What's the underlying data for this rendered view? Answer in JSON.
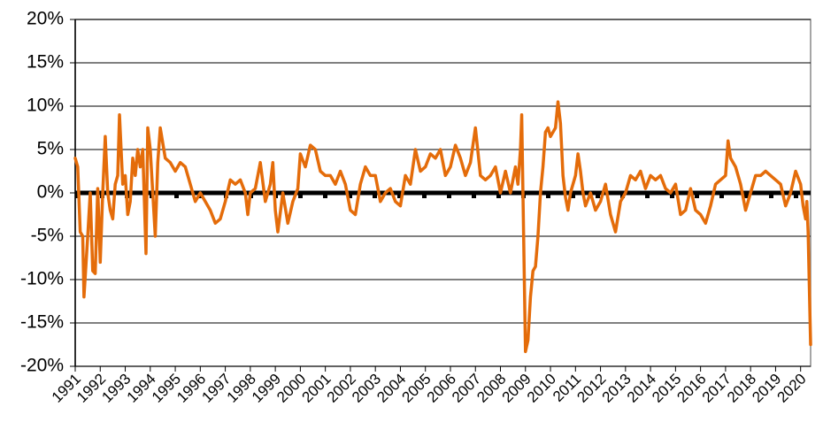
{
  "chart_data": {
    "type": "line",
    "x": [
      1991.0,
      1991.1,
      1991.2,
      1991.3,
      1991.35,
      1991.5,
      1991.6,
      1991.7,
      1991.8,
      1991.9,
      1992.0,
      1992.1,
      1992.2,
      1992.3,
      1992.4,
      1992.5,
      1992.6,
      1992.7,
      1992.77,
      1992.9,
      1993.0,
      1993.1,
      1993.2,
      1993.3,
      1993.4,
      1993.5,
      1993.6,
      1993.7,
      1993.83,
      1993.9,
      1994.0,
      1994.2,
      1994.3,
      1994.4,
      1994.6,
      1994.8,
      1995.0,
      1995.2,
      1995.4,
      1995.6,
      1995.8,
      1996.0,
      1996.2,
      1996.4,
      1996.6,
      1996.8,
      1997.0,
      1997.2,
      1997.4,
      1997.6,
      1997.8,
      1997.9,
      1998.0,
      1998.2,
      1998.4,
      1998.6,
      1998.8,
      1998.9,
      1999.0,
      1999.1,
      1999.3,
      1999.5,
      1999.7,
      1999.9,
      2000.0,
      2000.2,
      2000.4,
      2000.6,
      2000.8,
      2001.0,
      2001.2,
      2001.4,
      2001.6,
      2001.8,
      2002.0,
      2002.2,
      2002.4,
      2002.6,
      2002.8,
      2003.0,
      2003.2,
      2003.4,
      2003.6,
      2003.8,
      2004.0,
      2004.2,
      2004.4,
      2004.6,
      2004.8,
      2005.0,
      2005.2,
      2005.4,
      2005.6,
      2005.8,
      2006.0,
      2006.2,
      2006.4,
      2006.6,
      2006.8,
      2007.0,
      2007.2,
      2007.4,
      2007.6,
      2007.8,
      2008.0,
      2008.2,
      2008.4,
      2008.6,
      2008.7,
      2008.8,
      2008.85,
      2009.0,
      2009.1,
      2009.2,
      2009.3,
      2009.4,
      2009.5,
      2009.6,
      2009.7,
      2009.8,
      2009.9,
      2010.0,
      2010.1,
      2010.2,
      2010.3,
      2010.4,
      2010.5,
      2010.6,
      2010.7,
      2010.8,
      2011.0,
      2011.1,
      2011.2,
      2011.3,
      2011.4,
      2011.6,
      2011.8,
      2012.0,
      2012.2,
      2012.4,
      2012.6,
      2012.8,
      2013.0,
      2013.2,
      2013.4,
      2013.6,
      2013.8,
      2014.0,
      2014.2,
      2014.4,
      2014.6,
      2014.8,
      2015.0,
      2015.2,
      2015.4,
      2015.6,
      2015.8,
      2016.0,
      2016.2,
      2016.4,
      2016.6,
      2016.8,
      2017.0,
      2017.1,
      2017.2,
      2017.4,
      2017.6,
      2017.8,
      2018.0,
      2018.2,
      2018.4,
      2018.6,
      2018.8,
      2019.0,
      2019.2,
      2019.4,
      2019.6,
      2019.8,
      2020.0,
      2020.1,
      2020.2,
      2020.25,
      2020.3,
      2020.4
    ],
    "series": [
      {
        "color": "#e46c0a",
        "values": [
          4,
          3,
          -4.5,
          -5,
          -12,
          -5,
          0,
          -9,
          -9.3,
          0.5,
          -8,
          0,
          6.5,
          0,
          -2,
          -3,
          1,
          2,
          9,
          1,
          2,
          -2.5,
          -1,
          4,
          2,
          5,
          3,
          5,
          -7,
          7.5,
          5,
          -5,
          3.5,
          7.5,
          4,
          3.5,
          2.5,
          3.5,
          3,
          1,
          -1,
          0,
          -1,
          -2,
          -3.5,
          -3,
          -1,
          1.5,
          1,
          1.5,
          0,
          -2.5,
          0,
          0.5,
          3.5,
          -1,
          1,
          3.5,
          -2,
          -4.5,
          0,
          -3.5,
          -1,
          0.5,
          4.5,
          3,
          5.5,
          5,
          2.5,
          2,
          2,
          1,
          2.5,
          1,
          -2,
          -2.5,
          1,
          3,
          2,
          2,
          -1,
          0,
          0.5,
          -1,
          -1.5,
          2,
          1,
          5,
          2.5,
          3,
          4.5,
          4,
          5,
          2,
          3,
          5.5,
          4,
          2,
          3.5,
          7.5,
          2,
          1.5,
          2,
          3,
          0,
          2.5,
          0,
          3,
          1,
          5,
          9,
          -18.3,
          -17,
          -12,
          -9,
          -8.5,
          -5,
          0,
          3,
          7,
          7.5,
          6.5,
          7,
          7.5,
          10.5,
          8,
          2,
          -0.5,
          -2,
          0,
          2,
          4.5,
          2.5,
          0,
          -1.5,
          0,
          -2,
          -1,
          1,
          -2.5,
          -4.5,
          -1,
          0,
          2,
          1.5,
          2.5,
          0.5,
          2,
          1.5,
          2,
          0.5,
          0,
          1,
          -2.5,
          -2,
          0.5,
          -2,
          -2.5,
          -3.5,
          -1.5,
          1,
          1.5,
          2,
          6,
          4,
          3,
          1,
          -2,
          0,
          2,
          2,
          2.5,
          2,
          1.5,
          1,
          -1.5,
          0,
          2.5,
          1,
          -1.5,
          -3,
          -1,
          -4.5,
          -17.5
        ]
      }
    ],
    "xlim": [
      1991,
      2020.4
    ],
    "xticks": [
      1991,
      1992,
      1993,
      1994,
      1995,
      1996,
      1997,
      1998,
      1999,
      2000,
      2001,
      2002,
      2003,
      2004,
      2005,
      2006,
      2007,
      2008,
      2009,
      2010,
      2011,
      2012,
      2013,
      2014,
      2015,
      2016,
      2017,
      2018,
      2019,
      2020
    ],
    "ylim": [
      -20,
      20
    ],
    "yticks": [
      {
        "value": -20,
        "label": "-20%"
      },
      {
        "value": -15,
        "label": "-15%"
      },
      {
        "value": -10,
        "label": "-10%"
      },
      {
        "value": -5,
        "label": "-5%"
      },
      {
        "value": 0,
        "label": "0%"
      },
      {
        "value": 5,
        "label": "5%"
      },
      {
        "value": 10,
        "label": "10%"
      },
      {
        "value": 15,
        "label": "15%"
      },
      {
        "value": 20,
        "label": "20%"
      }
    ],
    "grid": true,
    "reference_line": 0
  }
}
